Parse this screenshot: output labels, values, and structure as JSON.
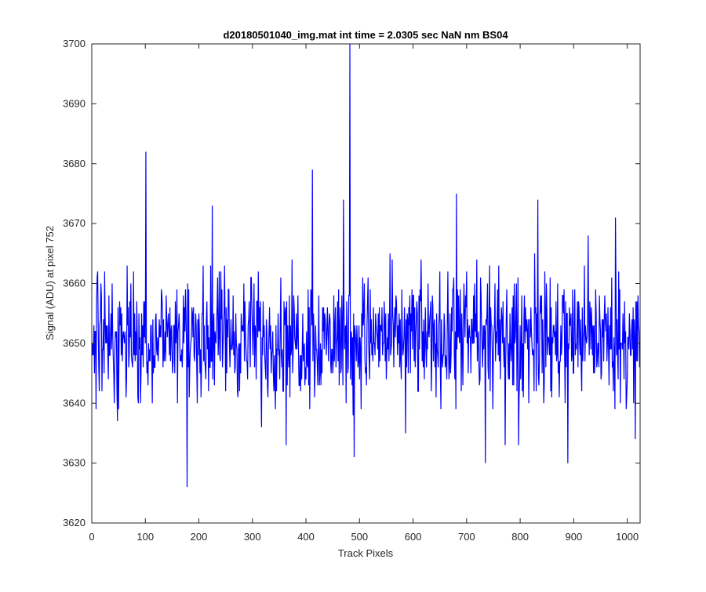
{
  "chart_data": {
    "type": "line",
    "title": "d20180501040_img.mat int time = 2.0305 sec  NaN nm BS04",
    "xlabel": "Track Pixels",
    "ylabel": "Signal (ADU) at pixel 752",
    "xlim": [
      0,
      1024
    ],
    "ylim": [
      3620,
      3700
    ],
    "xticks": [
      "0",
      "100",
      "200",
      "300",
      "400",
      "500",
      "600",
      "700",
      "800",
      "900",
      "1000"
    ],
    "yticks": [
      "3620",
      "3630",
      "3640",
      "3650",
      "3660",
      "3670",
      "3680",
      "3690",
      "3700"
    ],
    "grid": false,
    "box": true,
    "line_color": "#0000ff",
    "n_points": 1024,
    "baseline_mean": 3651,
    "noise_range": [
      3633,
      3667
    ],
    "series": [
      {
        "name": "",
        "points": [
          [
            0,
            3650
          ],
          [
            101,
            3682
          ],
          [
            178,
            3626
          ],
          [
            225,
            3673
          ],
          [
            412,
            3679
          ],
          [
            470,
            3674
          ],
          [
            482,
            3700
          ],
          [
            490,
            3631
          ],
          [
            681,
            3675
          ],
          [
            735,
            3630
          ],
          [
            833,
            3674
          ],
          [
            889,
            3630
          ],
          [
            1012,
            3640
          ],
          [
            1015,
            3634
          ],
          [
            1023,
            3646
          ]
        ]
      }
    ]
  }
}
